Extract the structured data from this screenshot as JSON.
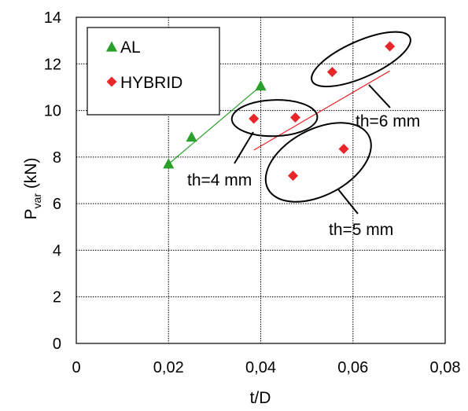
{
  "chart_data": {
    "type": "scatter",
    "xlabel": "t/D",
    "ylabel_main": "P",
    "ylabel_sub": "var",
    "ylabel_unit": " (kN)",
    "xlim": [
      0,
      0.08
    ],
    "ylim": [
      0,
      14
    ],
    "x_ticks": [
      0,
      0.02,
      0.04,
      0.06,
      0.08
    ],
    "x_tick_labels": [
      "0",
      "0,02",
      "0,04",
      "0,06",
      "0,08"
    ],
    "y_ticks": [
      0,
      2,
      4,
      6,
      8,
      10,
      12,
      14
    ],
    "y_tick_labels": [
      "0",
      "2",
      "4",
      "6",
      "8",
      "10",
      "12",
      "14"
    ],
    "grid": true,
    "legend_position": "top-left",
    "series": [
      {
        "name": "AL",
        "marker": "triangle",
        "color": "#2ca02c",
        "points": [
          [
            0.02,
            7.7
          ],
          [
            0.025,
            8.85
          ],
          [
            0.04,
            11.05
          ]
        ],
        "trendline": [
          [
            0.02,
            7.7
          ],
          [
            0.04,
            11.05
          ]
        ]
      },
      {
        "name": "HYBRID",
        "marker": "diamond",
        "color": "#e8262a",
        "points": [
          [
            0.0385,
            9.65
          ],
          [
            0.0475,
            9.7
          ],
          [
            0.047,
            7.2
          ],
          [
            0.058,
            8.35
          ],
          [
            0.0555,
            11.65
          ],
          [
            0.068,
            12.75
          ]
        ],
        "trendline": [
          [
            0.0385,
            8.3
          ],
          [
            0.068,
            11.7
          ]
        ]
      }
    ],
    "annotations": [
      {
        "text": "th=4 mm"
      },
      {
        "text": "th=5 mm"
      },
      {
        "text": "th=6 mm"
      }
    ]
  }
}
